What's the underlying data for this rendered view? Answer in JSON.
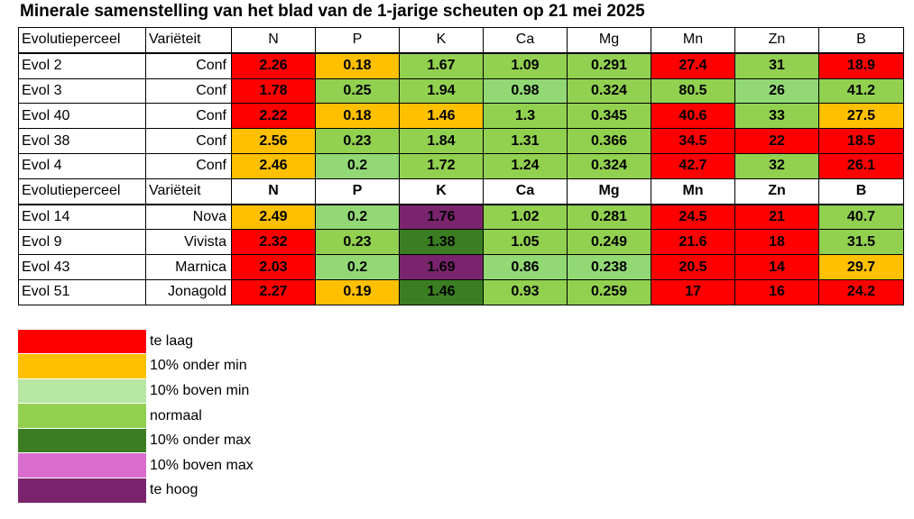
{
  "title": "Minerale samenstelling van het blad van de 1-jarige scheuten op 21 mei 2025",
  "colors": {
    "te_laag": "#ff0000",
    "onder_min": "#ffc000",
    "boven_min": "#92d875",
    "normaal": "#92d050",
    "onder_max": "#3a7d22",
    "boven_max": "#d86dcd",
    "te_hoog": "#7b246e",
    "none": "#ffffff"
  },
  "header": [
    "Evolutieperceel",
    "Variëteit",
    "N",
    "P",
    "K",
    "Ca",
    "Mg",
    "Mn",
    "Zn",
    "B"
  ],
  "group1": [
    {
      "perceel": "Evol 2",
      "variety": "Conf",
      "cells": [
        [
          "2.26",
          "te_laag"
        ],
        [
          "0.18",
          "onder_min"
        ],
        [
          "1.67",
          "normaal"
        ],
        [
          "1.09",
          "normaal"
        ],
        [
          "0.291",
          "normaal"
        ],
        [
          "27.4",
          "te_laag"
        ],
        [
          "31",
          "normaal"
        ],
        [
          "18.9",
          "te_laag"
        ]
      ]
    },
    {
      "perceel": "Evol 3",
      "variety": "Conf",
      "cells": [
        [
          "1.78",
          "te_laag"
        ],
        [
          "0.25",
          "normaal"
        ],
        [
          "1.94",
          "normaal"
        ],
        [
          "0.98",
          "boven_min"
        ],
        [
          "0.324",
          "normaal"
        ],
        [
          "80.5",
          "normaal"
        ],
        [
          "26",
          "boven_min"
        ],
        [
          "41.2",
          "normaal"
        ]
      ]
    },
    {
      "perceel": "Evol 40",
      "variety": "Conf",
      "cells": [
        [
          "2.22",
          "te_laag"
        ],
        [
          "0.18",
          "onder_min"
        ],
        [
          "1.46",
          "onder_min"
        ],
        [
          "1.3",
          "normaal"
        ],
        [
          "0.345",
          "normaal"
        ],
        [
          "40.6",
          "te_laag"
        ],
        [
          "33",
          "normaal"
        ],
        [
          "27.5",
          "onder_min"
        ]
      ]
    },
    {
      "perceel": "Evol 38",
      "variety": "Conf",
      "cells": [
        [
          "2.56",
          "onder_min"
        ],
        [
          "0.23",
          "normaal"
        ],
        [
          "1.84",
          "normaal"
        ],
        [
          "1.31",
          "normaal"
        ],
        [
          "0.366",
          "normaal"
        ],
        [
          "34.5",
          "te_laag"
        ],
        [
          "22",
          "te_laag"
        ],
        [
          "18.5",
          "te_laag"
        ]
      ]
    },
    {
      "perceel": "Evol 4",
      "variety": "Conf",
      "cells": [
        [
          "2.46",
          "onder_min"
        ],
        [
          "0.2",
          "boven_min"
        ],
        [
          "1.72",
          "normaal"
        ],
        [
          "1.24",
          "normaal"
        ],
        [
          "0.324",
          "normaal"
        ],
        [
          "42.7",
          "te_laag"
        ],
        [
          "32",
          "normaal"
        ],
        [
          "26.1",
          "te_laag"
        ]
      ]
    }
  ],
  "group2": [
    {
      "perceel": "Evol 14",
      "variety": "Nova",
      "cells": [
        [
          "2.49",
          "onder_min"
        ],
        [
          "0.2",
          "boven_min"
        ],
        [
          "1.76",
          "te_hoog"
        ],
        [
          "1.02",
          "normaal"
        ],
        [
          "0.281",
          "normaal"
        ],
        [
          "24.5",
          "te_laag"
        ],
        [
          "21",
          "te_laag"
        ],
        [
          "40.7",
          "normaal"
        ]
      ]
    },
    {
      "perceel": "Evol 9",
      "variety": "Vivista",
      "cells": [
        [
          "2.32",
          "te_laag"
        ],
        [
          "0.23",
          "normaal"
        ],
        [
          "1.38",
          "onder_max"
        ],
        [
          "1.05",
          "normaal"
        ],
        [
          "0.249",
          "normaal"
        ],
        [
          "21.6",
          "te_laag"
        ],
        [
          "18",
          "te_laag"
        ],
        [
          "31.5",
          "normaal"
        ]
      ]
    },
    {
      "perceel": "Evol 43",
      "variety": "Marnica",
      "cells": [
        [
          "2.03",
          "te_laag"
        ],
        [
          "0.2",
          "boven_min"
        ],
        [
          "1.69",
          "te_hoog"
        ],
        [
          "0.86",
          "boven_min"
        ],
        [
          "0.238",
          "boven_min"
        ],
        [
          "20.5",
          "te_laag"
        ],
        [
          "14",
          "te_laag"
        ],
        [
          "29.7",
          "onder_min"
        ]
      ]
    },
    {
      "perceel": "Evol 51",
      "variety": "Jonagold",
      "cells": [
        [
          "2.27",
          "te_laag"
        ],
        [
          "0.19",
          "onder_min"
        ],
        [
          "1.46",
          "onder_max"
        ],
        [
          "0.93",
          "normaal"
        ],
        [
          "0.259",
          "normaal"
        ],
        [
          "17",
          "te_laag"
        ],
        [
          "16",
          "te_laag"
        ],
        [
          "24.2",
          "te_laag"
        ]
      ]
    }
  ],
  "legend": [
    {
      "color": "te_laag",
      "label": "te laag"
    },
    {
      "color": "onder_min",
      "label": "10% onder min"
    },
    {
      "color": "boven_min_light",
      "label": "10% boven min"
    },
    {
      "color": "normaal",
      "label": "normaal"
    },
    {
      "color": "onder_max",
      "label": "10% onder max"
    },
    {
      "color": "boven_max",
      "label": "10% boven max"
    },
    {
      "color": "te_hoog",
      "label": "te hoog"
    }
  ],
  "legend_colors": {
    "te_laag": "#ff0000",
    "onder_min": "#ffc000",
    "boven_min_light": "#b7e6a3",
    "normaal": "#92d050",
    "onder_max": "#3a7d22",
    "boven_max": "#d86dcd",
    "te_hoog": "#7b246e"
  }
}
